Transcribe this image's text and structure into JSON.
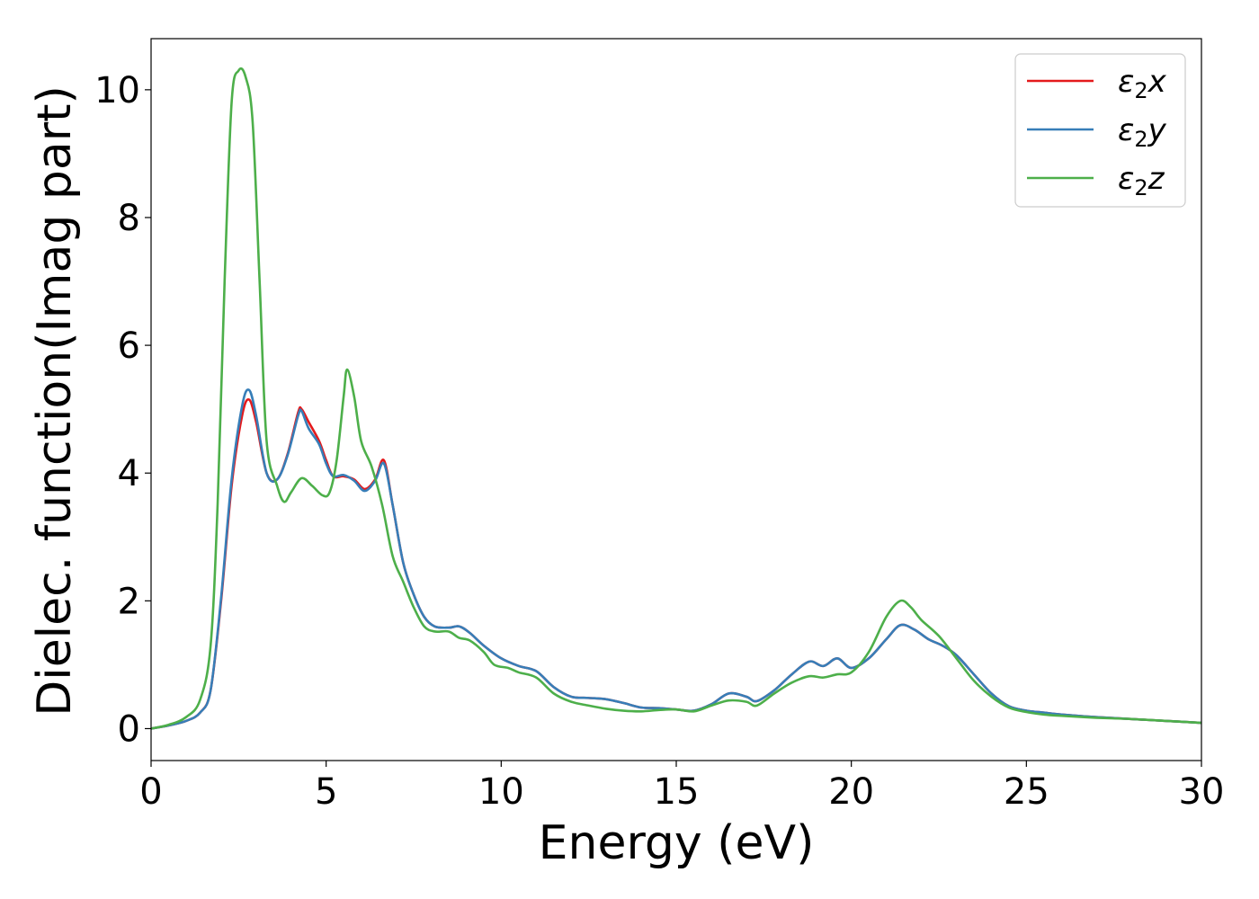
{
  "chart_data": {
    "type": "line",
    "title": "",
    "xlabel": "Energy (eV)",
    "ylabel": "Dielec. function(Imag part)",
    "xlim": [
      0,
      30
    ],
    "ylim": [
      -0.5,
      10.8
    ],
    "xticks": [
      0,
      5,
      10,
      15,
      20,
      25,
      30
    ],
    "yticks": [
      0,
      2,
      4,
      6,
      8,
      10
    ],
    "grid": false,
    "legend": "top-right",
    "series": [
      {
        "name": "ε₂x",
        "label_base": "ε",
        "label_sub": "2",
        "label_tail": "x",
        "color": "#e41a1c",
        "points": [
          [
            0,
            0
          ],
          [
            0.5,
            0.05
          ],
          [
            1.0,
            0.12
          ],
          [
            1.4,
            0.25
          ],
          [
            1.7,
            0.6
          ],
          [
            2.0,
            2.0
          ],
          [
            2.3,
            3.8
          ],
          [
            2.6,
            4.9
          ],
          [
            2.8,
            5.15
          ],
          [
            3.0,
            4.8
          ],
          [
            3.3,
            4.0
          ],
          [
            3.6,
            3.9
          ],
          [
            3.9,
            4.3
          ],
          [
            4.2,
            4.95
          ],
          [
            4.3,
            5.0
          ],
          [
            4.5,
            4.8
          ],
          [
            4.8,
            4.5
          ],
          [
            5.0,
            4.2
          ],
          [
            5.2,
            3.95
          ],
          [
            5.5,
            3.95
          ],
          [
            5.8,
            3.9
          ],
          [
            6.1,
            3.75
          ],
          [
            6.4,
            3.9
          ],
          [
            6.65,
            4.2
          ],
          [
            6.9,
            3.5
          ],
          [
            7.2,
            2.6
          ],
          [
            7.5,
            2.1
          ],
          [
            7.8,
            1.75
          ],
          [
            8.1,
            1.6
          ],
          [
            8.5,
            1.58
          ],
          [
            8.8,
            1.6
          ],
          [
            9.1,
            1.5
          ],
          [
            9.5,
            1.3
          ],
          [
            10.0,
            1.1
          ],
          [
            10.5,
            0.98
          ],
          [
            11.0,
            0.9
          ],
          [
            11.5,
            0.65
          ],
          [
            12.0,
            0.5
          ],
          [
            12.5,
            0.48
          ],
          [
            13.0,
            0.46
          ],
          [
            13.5,
            0.4
          ],
          [
            14.0,
            0.33
          ],
          [
            14.5,
            0.32
          ],
          [
            15.0,
            0.3
          ],
          [
            15.5,
            0.28
          ],
          [
            16.0,
            0.38
          ],
          [
            16.5,
            0.55
          ],
          [
            17.0,
            0.5
          ],
          [
            17.3,
            0.43
          ],
          [
            17.8,
            0.6
          ],
          [
            18.3,
            0.85
          ],
          [
            18.8,
            1.05
          ],
          [
            19.2,
            0.98
          ],
          [
            19.6,
            1.1
          ],
          [
            20.0,
            0.95
          ],
          [
            20.5,
            1.1
          ],
          [
            21.0,
            1.4
          ],
          [
            21.4,
            1.62
          ],
          [
            21.8,
            1.55
          ],
          [
            22.2,
            1.4
          ],
          [
            22.6,
            1.3
          ],
          [
            23.0,
            1.15
          ],
          [
            23.5,
            0.85
          ],
          [
            24.0,
            0.55
          ],
          [
            24.5,
            0.35
          ],
          [
            25.0,
            0.28
          ],
          [
            25.5,
            0.25
          ],
          [
            26.0,
            0.22
          ],
          [
            27.0,
            0.18
          ],
          [
            28.0,
            0.15
          ],
          [
            29.0,
            0.12
          ],
          [
            30.0,
            0.09
          ]
        ]
      },
      {
        "name": "ε₂y",
        "label_base": "ε",
        "label_sub": "2",
        "label_tail": "y",
        "color": "#377eb8",
        "points": [
          [
            0,
            0
          ],
          [
            0.5,
            0.05
          ],
          [
            1.0,
            0.12
          ],
          [
            1.4,
            0.25
          ],
          [
            1.7,
            0.6
          ],
          [
            2.0,
            2.05
          ],
          [
            2.3,
            3.9
          ],
          [
            2.6,
            5.05
          ],
          [
            2.8,
            5.3
          ],
          [
            3.0,
            4.9
          ],
          [
            3.3,
            4.0
          ],
          [
            3.6,
            3.9
          ],
          [
            3.9,
            4.28
          ],
          [
            4.2,
            4.9
          ],
          [
            4.3,
            4.97
          ],
          [
            4.5,
            4.7
          ],
          [
            4.8,
            4.45
          ],
          [
            5.0,
            4.15
          ],
          [
            5.2,
            3.95
          ],
          [
            5.5,
            3.97
          ],
          [
            5.8,
            3.88
          ],
          [
            6.1,
            3.72
          ],
          [
            6.4,
            3.88
          ],
          [
            6.65,
            4.15
          ],
          [
            6.9,
            3.5
          ],
          [
            7.2,
            2.6
          ],
          [
            7.5,
            2.1
          ],
          [
            7.8,
            1.75
          ],
          [
            8.1,
            1.6
          ],
          [
            8.5,
            1.58
          ],
          [
            8.8,
            1.6
          ],
          [
            9.1,
            1.5
          ],
          [
            9.5,
            1.3
          ],
          [
            10.0,
            1.1
          ],
          [
            10.5,
            0.98
          ],
          [
            11.0,
            0.9
          ],
          [
            11.5,
            0.65
          ],
          [
            12.0,
            0.5
          ],
          [
            12.5,
            0.48
          ],
          [
            13.0,
            0.46
          ],
          [
            13.5,
            0.4
          ],
          [
            14.0,
            0.33
          ],
          [
            14.5,
            0.32
          ],
          [
            15.0,
            0.3
          ],
          [
            15.5,
            0.28
          ],
          [
            16.0,
            0.38
          ],
          [
            16.5,
            0.55
          ],
          [
            17.0,
            0.5
          ],
          [
            17.3,
            0.43
          ],
          [
            17.8,
            0.6
          ],
          [
            18.3,
            0.85
          ],
          [
            18.8,
            1.05
          ],
          [
            19.2,
            0.98
          ],
          [
            19.6,
            1.1
          ],
          [
            20.0,
            0.95
          ],
          [
            20.5,
            1.1
          ],
          [
            21.0,
            1.4
          ],
          [
            21.4,
            1.62
          ],
          [
            21.8,
            1.55
          ],
          [
            22.2,
            1.4
          ],
          [
            22.6,
            1.3
          ],
          [
            23.0,
            1.15
          ],
          [
            23.5,
            0.85
          ],
          [
            24.0,
            0.55
          ],
          [
            24.5,
            0.35
          ],
          [
            25.0,
            0.28
          ],
          [
            25.5,
            0.25
          ],
          [
            26.0,
            0.22
          ],
          [
            27.0,
            0.18
          ],
          [
            28.0,
            0.15
          ],
          [
            29.0,
            0.12
          ],
          [
            30.0,
            0.09
          ]
        ]
      },
      {
        "name": "ε₂z",
        "label_base": "ε",
        "label_sub": "2",
        "label_tail": "z",
        "color": "#4daf4a",
        "points": [
          [
            0,
            0
          ],
          [
            0.5,
            0.06
          ],
          [
            1.0,
            0.18
          ],
          [
            1.4,
            0.45
          ],
          [
            1.7,
            1.3
          ],
          [
            1.9,
            3.5
          ],
          [
            2.1,
            7.0
          ],
          [
            2.3,
            9.8
          ],
          [
            2.5,
            10.3
          ],
          [
            2.7,
            10.2
          ],
          [
            2.9,
            9.5
          ],
          [
            3.1,
            7.0
          ],
          [
            3.3,
            4.5
          ],
          [
            3.6,
            3.8
          ],
          [
            3.8,
            3.55
          ],
          [
            4.0,
            3.7
          ],
          [
            4.3,
            3.92
          ],
          [
            4.6,
            3.8
          ],
          [
            4.9,
            3.65
          ],
          [
            5.1,
            3.7
          ],
          [
            5.3,
            4.2
          ],
          [
            5.5,
            5.2
          ],
          [
            5.6,
            5.62
          ],
          [
            5.8,
            5.2
          ],
          [
            6.0,
            4.5
          ],
          [
            6.3,
            4.1
          ],
          [
            6.6,
            3.5
          ],
          [
            6.9,
            2.7
          ],
          [
            7.2,
            2.3
          ],
          [
            7.5,
            1.9
          ],
          [
            7.8,
            1.6
          ],
          [
            8.1,
            1.52
          ],
          [
            8.5,
            1.52
          ],
          [
            8.8,
            1.42
          ],
          [
            9.1,
            1.38
          ],
          [
            9.5,
            1.2
          ],
          [
            9.8,
            1.0
          ],
          [
            10.2,
            0.95
          ],
          [
            10.5,
            0.88
          ],
          [
            11.0,
            0.8
          ],
          [
            11.5,
            0.55
          ],
          [
            12.0,
            0.42
          ],
          [
            12.5,
            0.36
          ],
          [
            13.0,
            0.31
          ],
          [
            13.5,
            0.28
          ],
          [
            14.0,
            0.27
          ],
          [
            14.5,
            0.29
          ],
          [
            15.0,
            0.3
          ],
          [
            15.5,
            0.27
          ],
          [
            16.0,
            0.36
          ],
          [
            16.5,
            0.44
          ],
          [
            17.0,
            0.42
          ],
          [
            17.3,
            0.36
          ],
          [
            17.8,
            0.55
          ],
          [
            18.3,
            0.72
          ],
          [
            18.8,
            0.82
          ],
          [
            19.2,
            0.8
          ],
          [
            19.6,
            0.85
          ],
          [
            20.0,
            0.88
          ],
          [
            20.5,
            1.2
          ],
          [
            21.0,
            1.75
          ],
          [
            21.4,
            2.0
          ],
          [
            21.7,
            1.9
          ],
          [
            22.0,
            1.7
          ],
          [
            22.5,
            1.45
          ],
          [
            23.0,
            1.1
          ],
          [
            23.5,
            0.75
          ],
          [
            24.0,
            0.5
          ],
          [
            24.5,
            0.33
          ],
          [
            25.0,
            0.26
          ],
          [
            25.5,
            0.22
          ],
          [
            26.0,
            0.2
          ],
          [
            27.0,
            0.17
          ],
          [
            28.0,
            0.15
          ],
          [
            29.0,
            0.12
          ],
          [
            30.0,
            0.09
          ]
        ]
      }
    ]
  }
}
